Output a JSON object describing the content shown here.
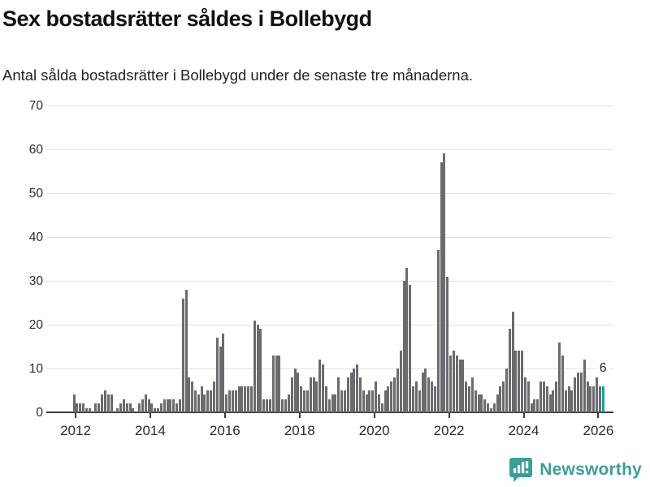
{
  "header": {
    "title": "Sex bostadsrätter såldes i Bollebygd",
    "subtitle": "Antal sålda bostadsrätter i Bollebygd under de senaste tre månaderna."
  },
  "footer": {
    "brand": "Newsworthy"
  },
  "colors": {
    "bar": "#6b6a6f",
    "highlight": "#14a2a0",
    "brand_teal": "#3d9e98",
    "axis": "#3c3c3c",
    "grid": "#e2e2e2"
  },
  "chart_data": {
    "type": "bar",
    "title": "Sex bostadsrätter såldes i Bollebygd",
    "subtitle": "Antal sålda bostadsrätter i Bollebygd under de senaste tre månaderna.",
    "x_unit": "month",
    "start": "2011-11",
    "end": "2026-02",
    "ylim": [
      0,
      70
    ],
    "yticks": [
      0,
      10,
      20,
      30,
      40,
      50,
      60,
      70
    ],
    "xtick_years": [
      2012,
      2014,
      2016,
      2018,
      2020,
      2022,
      2024,
      2026
    ],
    "grid": "horizontal",
    "legend": "none",
    "series": [
      {
        "name": "Antal sålda bostadsrätter",
        "monthly_by_year": [
          {
            "year": 2011,
            "from_month": 11,
            "values": [
              0,
              4
            ]
          },
          {
            "year": 2012,
            "values": [
              2,
              2,
              2,
              1,
              1,
              0,
              2,
              2,
              4,
              5,
              4,
              4
            ]
          },
          {
            "year": 2013,
            "values": [
              0,
              1,
              2,
              3,
              2,
              2,
              1,
              0,
              2,
              3,
              4,
              3
            ]
          },
          {
            "year": 2014,
            "values": [
              2,
              1,
              1,
              2,
              3,
              3,
              3,
              3,
              2,
              3,
              26,
              28
            ]
          },
          {
            "year": 2015,
            "values": [
              8,
              7,
              5,
              4,
              6,
              4,
              5,
              5,
              7,
              17,
              15,
              18
            ]
          },
          {
            "year": 2016,
            "values": [
              4,
              5,
              5,
              5,
              6,
              6,
              6,
              6,
              6,
              21,
              20,
              19
            ]
          },
          {
            "year": 2017,
            "values": [
              3,
              3,
              3,
              13,
              13,
              13,
              3,
              3,
              4,
              8,
              10,
              9
            ]
          },
          {
            "year": 2018,
            "values": [
              6,
              5,
              5,
              8,
              8,
              7,
              12,
              11,
              6,
              3,
              4,
              4
            ]
          },
          {
            "year": 2019,
            "values": [
              8,
              5,
              5,
              8,
              9,
              10,
              11,
              8,
              5,
              4,
              5,
              5
            ]
          },
          {
            "year": 2020,
            "values": [
              7,
              4,
              2,
              5,
              6,
              7,
              8,
              10,
              14,
              30,
              33,
              29
            ]
          },
          {
            "year": 2021,
            "values": [
              6,
              7,
              5,
              9,
              10,
              8,
              7,
              6,
              37,
              57,
              59,
              31
            ]
          },
          {
            "year": 2022,
            "values": [
              13,
              14,
              13,
              12,
              12,
              7,
              6,
              8,
              5,
              4,
              4,
              3
            ]
          },
          {
            "year": 2023,
            "values": [
              2,
              1,
              2,
              4,
              6,
              7,
              10,
              19,
              23,
              14,
              14,
              14
            ]
          },
          {
            "year": 2024,
            "values": [
              8,
              7,
              2,
              3,
              3,
              7,
              7,
              6,
              4,
              5,
              7,
              16
            ]
          },
          {
            "year": 2025,
            "values": [
              13,
              5,
              6,
              5,
              8,
              9,
              9,
              12,
              7,
              6,
              6,
              8
            ]
          },
          {
            "year": 2026,
            "values": [
              6,
              6
            ]
          }
        ]
      }
    ],
    "highlight": {
      "position": "last",
      "month": "2026-02",
      "value": 6,
      "label": "6"
    }
  }
}
